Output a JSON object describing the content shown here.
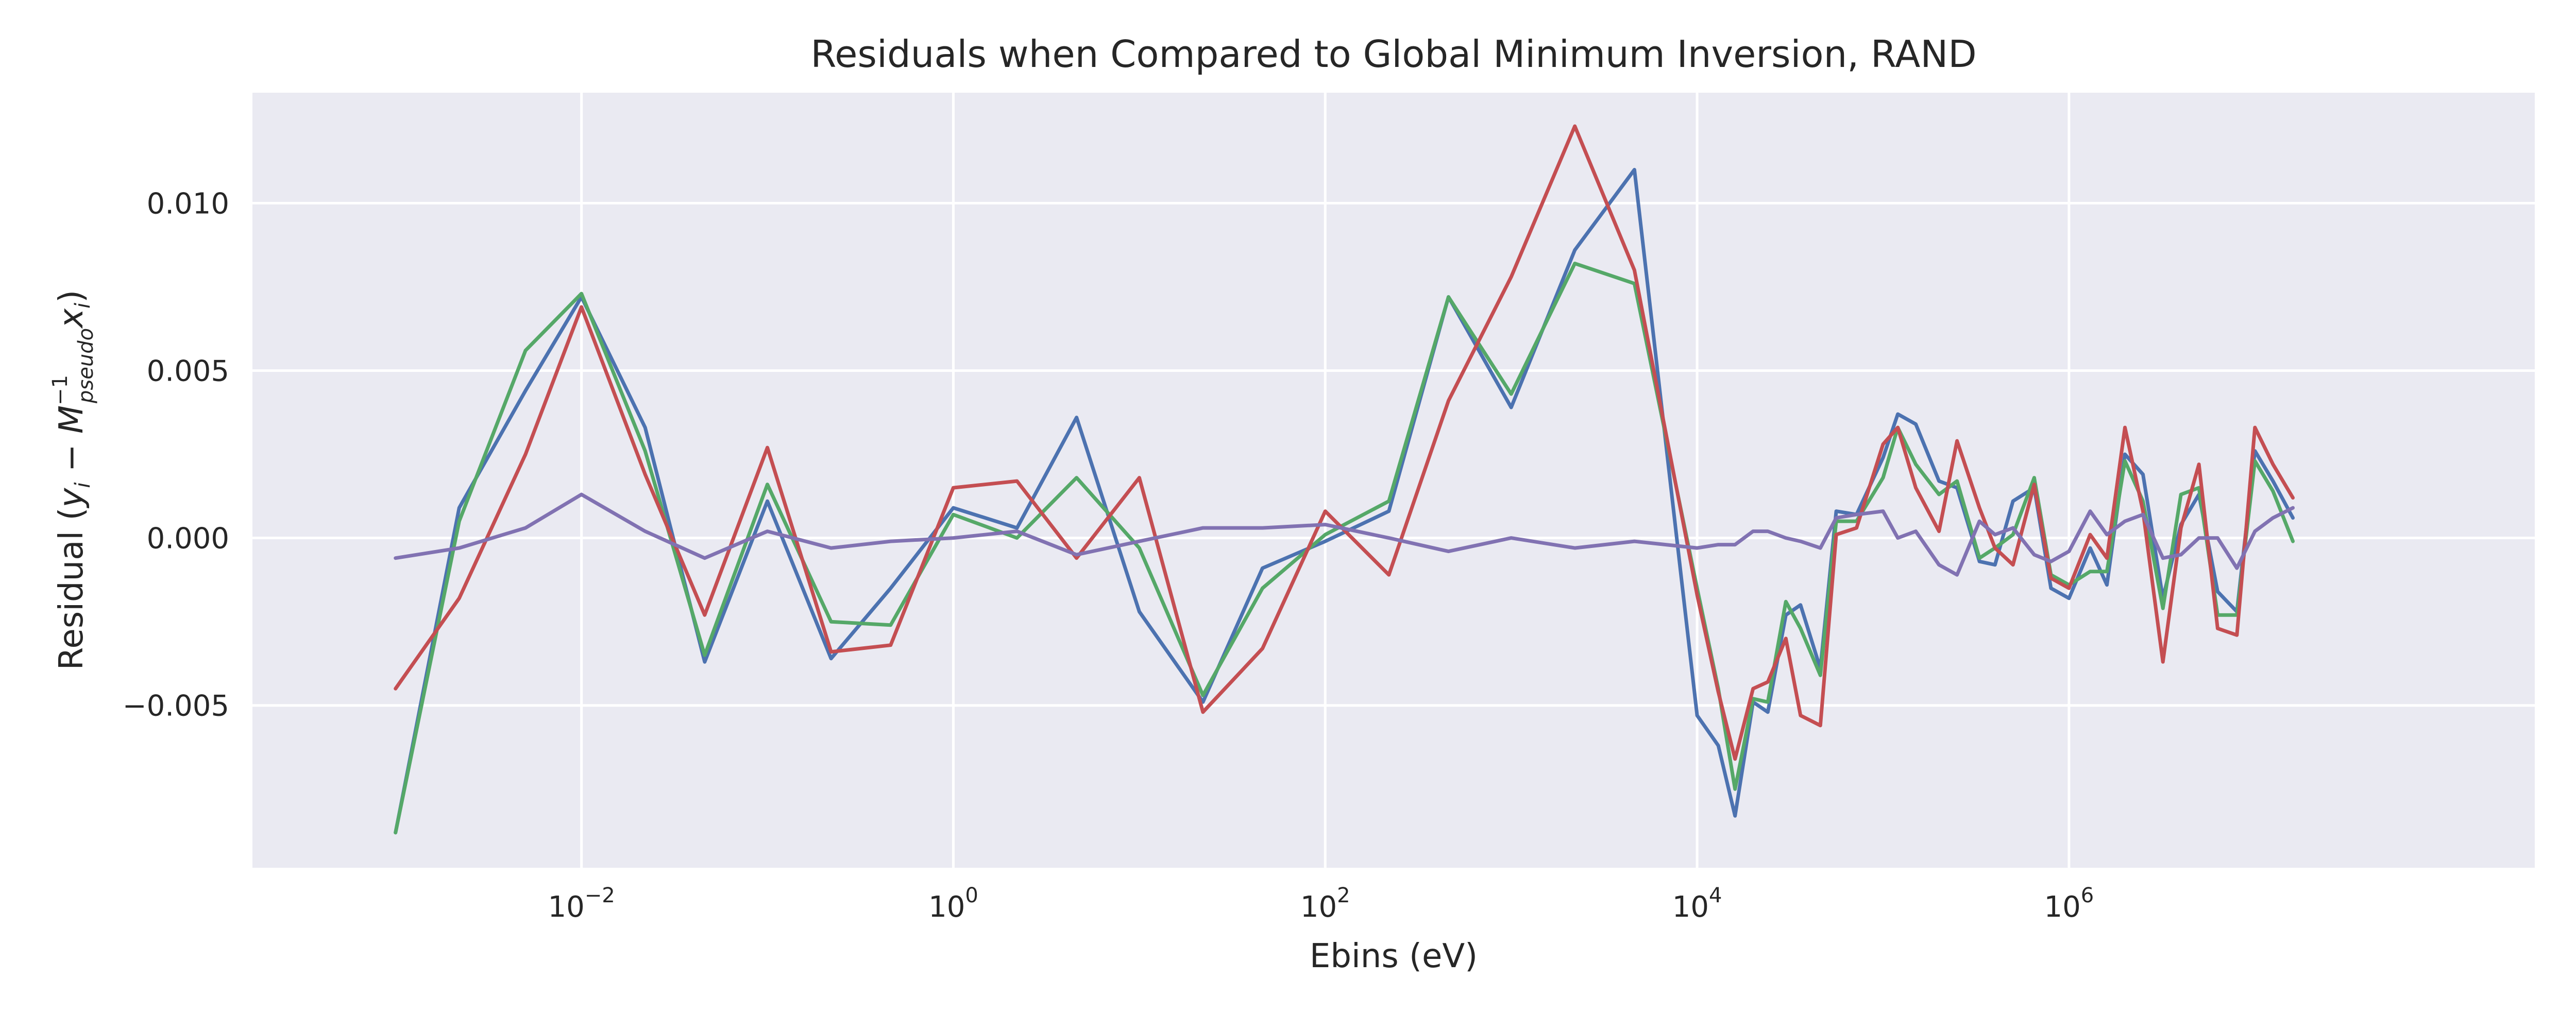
{
  "chart_data": {
    "type": "line",
    "title": "Residuals when Compared to Global Minimum Inversion, RAND",
    "xlabel": "Ebins (eV)",
    "ylabel_parts": {
      "prefix": "Residual (",
      "y": "y",
      "y_sub": "i",
      "minus": " − ",
      "M": "M",
      "M_sup": "−1",
      "M_sub": "pseudo",
      "x": "x",
      "x_sub": "i",
      "suffix": ")"
    },
    "x_scale": "log",
    "xlim": [
      0.00017,
      320000000
    ],
    "ylim": [
      -0.00985,
      0.0133
    ],
    "grid": true,
    "x_ticks": [
      {
        "value": 0.01,
        "base": "10",
        "exp": "−2"
      },
      {
        "value": 1,
        "base": "10",
        "exp": "0"
      },
      {
        "value": 100,
        "base": "10",
        "exp": "2"
      },
      {
        "value": 10000,
        "base": "10",
        "exp": "4"
      },
      {
        "value": 1000000,
        "base": "10",
        "exp": "6"
      }
    ],
    "y_ticks": [
      {
        "value": 0.01,
        "label": "0.010"
      },
      {
        "value": 0.005,
        "label": "0.005"
      },
      {
        "value": 0.0,
        "label": "0.000"
      },
      {
        "value": -0.005,
        "label": "−0.005"
      }
    ],
    "series": [
      {
        "color": "#4c72b0",
        "points": [
          [
            0.001,
            -0.0088
          ],
          [
            0.0022,
            0.0009
          ],
          [
            0.005,
            0.0044
          ],
          [
            0.01,
            0.0072
          ],
          [
            0.022,
            0.0033
          ],
          [
            0.046,
            -0.0037
          ],
          [
            0.1,
            0.0011
          ],
          [
            0.22,
            -0.0036
          ],
          [
            0.46,
            -0.0015
          ],
          [
            1,
            0.0009
          ],
          [
            2.2,
            0.0003
          ],
          [
            4.6,
            0.0036
          ],
          [
            10,
            -0.0022
          ],
          [
            22,
            -0.0049
          ],
          [
            46,
            -0.0009
          ],
          [
            100,
            -0.0001
          ],
          [
            220,
            0.0008
          ],
          [
            460,
            0.0072
          ],
          [
            1000,
            0.0039
          ],
          [
            2200,
            0.0086
          ],
          [
            4600,
            0.011
          ],
          [
            10000,
            -0.0053
          ],
          [
            13000,
            -0.0062
          ],
          [
            16000,
            -0.0083
          ],
          [
            20000,
            -0.0049
          ],
          [
            24000,
            -0.0052
          ],
          [
            30000,
            -0.0023
          ],
          [
            36000,
            -0.002
          ],
          [
            46000,
            -0.0039
          ],
          [
            56000,
            0.0008
          ],
          [
            72000,
            0.0007
          ],
          [
            100000,
            0.0024
          ],
          [
            120000,
            0.0037
          ],
          [
            150000,
            0.0034
          ],
          [
            200000,
            0.0017
          ],
          [
            250000,
            0.0015
          ],
          [
            330000,
            -0.0007
          ],
          [
            400000,
            -0.0008
          ],
          [
            500000,
            0.0011
          ],
          [
            650000,
            0.0015
          ],
          [
            800000,
            -0.0015
          ],
          [
            1000000,
            -0.0018
          ],
          [
            1300000,
            -0.0003
          ],
          [
            1600000,
            -0.0014
          ],
          [
            2000000,
            0.0025
          ],
          [
            2500000,
            0.0019
          ],
          [
            3200000,
            -0.0018
          ],
          [
            4000000,
            0.0004
          ],
          [
            5000000,
            0.0013
          ],
          [
            6300000,
            -0.0016
          ],
          [
            8000000,
            -0.0022
          ],
          [
            10000000,
            0.0026
          ],
          [
            12500000,
            0.0017
          ],
          [
            16000000,
            0.0006
          ]
        ]
      },
      {
        "color": "#55a868",
        "points": [
          [
            0.001,
            -0.0088
          ],
          [
            0.0022,
            0.0005
          ],
          [
            0.005,
            0.0056
          ],
          [
            0.01,
            0.0073
          ],
          [
            0.022,
            0.0026
          ],
          [
            0.046,
            -0.0035
          ],
          [
            0.1,
            0.0016
          ],
          [
            0.22,
            -0.0025
          ],
          [
            0.46,
            -0.0026
          ],
          [
            1,
            0.0007
          ],
          [
            2.2,
            0.0
          ],
          [
            4.6,
            0.0018
          ],
          [
            10,
            -0.0003
          ],
          [
            22,
            -0.0047
          ],
          [
            46,
            -0.0015
          ],
          [
            100,
            0.0001
          ],
          [
            220,
            0.0011
          ],
          [
            460,
            0.0072
          ],
          [
            1000,
            0.0043
          ],
          [
            2200,
            0.0082
          ],
          [
            4600,
            0.0076
          ],
          [
            10000,
            -0.0015
          ],
          [
            13000,
            -0.0045
          ],
          [
            16000,
            -0.0075
          ],
          [
            20000,
            -0.0048
          ],
          [
            24000,
            -0.0049
          ],
          [
            30000,
            -0.0019
          ],
          [
            36000,
            -0.0027
          ],
          [
            46000,
            -0.0041
          ],
          [
            56000,
            0.0005
          ],
          [
            72000,
            0.0005
          ],
          [
            100000,
            0.0018
          ],
          [
            120000,
            0.0033
          ],
          [
            150000,
            0.0022
          ],
          [
            200000,
            0.0013
          ],
          [
            250000,
            0.0017
          ],
          [
            330000,
            -0.0006
          ],
          [
            400000,
            -0.0003
          ],
          [
            500000,
            0.0001
          ],
          [
            650000,
            0.0018
          ],
          [
            800000,
            -0.0011
          ],
          [
            1000000,
            -0.0014
          ],
          [
            1300000,
            -0.001
          ],
          [
            1600000,
            -0.001
          ],
          [
            2000000,
            0.0023
          ],
          [
            2500000,
            0.0011
          ],
          [
            3200000,
            -0.0021
          ],
          [
            4000000,
            0.0013
          ],
          [
            5000000,
            0.0015
          ],
          [
            6300000,
            -0.0023
          ],
          [
            8000000,
            -0.0023
          ],
          [
            10000000,
            0.0023
          ],
          [
            12500000,
            0.0014
          ],
          [
            16000000,
            -0.0001
          ]
        ]
      },
      {
        "color": "#c44e52",
        "points": [
          [
            0.001,
            -0.0045
          ],
          [
            0.0022,
            -0.0018
          ],
          [
            0.005,
            0.0025
          ],
          [
            0.01,
            0.0069
          ],
          [
            0.022,
            0.0019
          ],
          [
            0.046,
            -0.0023
          ],
          [
            0.1,
            0.0027
          ],
          [
            0.22,
            -0.0034
          ],
          [
            0.46,
            -0.0032
          ],
          [
            1,
            0.0015
          ],
          [
            2.2,
            0.0017
          ],
          [
            4.6,
            -0.0006
          ],
          [
            10,
            0.0018
          ],
          [
            22,
            -0.0052
          ],
          [
            46,
            -0.0033
          ],
          [
            100,
            0.0008
          ],
          [
            220,
            -0.0011
          ],
          [
            460,
            0.0041
          ],
          [
            1000,
            0.0078
          ],
          [
            2200,
            0.0123
          ],
          [
            4600,
            0.008
          ],
          [
            10000,
            -0.0017
          ],
          [
            13000,
            -0.0046
          ],
          [
            16000,
            -0.0066
          ],
          [
            20000,
            -0.0045
          ],
          [
            24000,
            -0.0043
          ],
          [
            30000,
            -0.003
          ],
          [
            36000,
            -0.0053
          ],
          [
            46000,
            -0.0056
          ],
          [
            56000,
            0.0001
          ],
          [
            72000,
            0.0003
          ],
          [
            100000,
            0.0028
          ],
          [
            120000,
            0.0033
          ],
          [
            150000,
            0.0015
          ],
          [
            200000,
            0.0002
          ],
          [
            250000,
            0.0029
          ],
          [
            330000,
            0.0009
          ],
          [
            400000,
            -0.0003
          ],
          [
            500000,
            -0.0008
          ],
          [
            650000,
            0.0016
          ],
          [
            800000,
            -0.0012
          ],
          [
            1000000,
            -0.0015
          ],
          [
            1300000,
            0.0001
          ],
          [
            1600000,
            -0.0006
          ],
          [
            2000000,
            0.0033
          ],
          [
            2500000,
            0.0008
          ],
          [
            3200000,
            -0.0037
          ],
          [
            4000000,
            0.0003
          ],
          [
            5000000,
            0.0022
          ],
          [
            6300000,
            -0.0027
          ],
          [
            8000000,
            -0.0029
          ],
          [
            10000000,
            0.0033
          ],
          [
            12500000,
            0.0022
          ],
          [
            16000000,
            0.0012
          ]
        ]
      },
      {
        "color": "#8172b2",
        "points": [
          [
            0.001,
            -0.0006
          ],
          [
            0.0022,
            -0.0003
          ],
          [
            0.005,
            0.0003
          ],
          [
            0.01,
            0.0013
          ],
          [
            0.022,
            0.0002
          ],
          [
            0.046,
            -0.0006
          ],
          [
            0.1,
            0.0002
          ],
          [
            0.22,
            -0.0003
          ],
          [
            0.46,
            -0.0001
          ],
          [
            1,
            0.0
          ],
          [
            2.2,
            0.0002
          ],
          [
            4.6,
            -0.0005
          ],
          [
            10,
            -0.0001
          ],
          [
            22,
            0.0003
          ],
          [
            46,
            0.0003
          ],
          [
            100,
            0.0004
          ],
          [
            220,
            0.0
          ],
          [
            460,
            -0.0004
          ],
          [
            1000,
            0.0
          ],
          [
            2200,
            -0.0003
          ],
          [
            4600,
            -0.0001
          ],
          [
            10000,
            -0.0003
          ],
          [
            13000,
            -0.0002
          ],
          [
            16000,
            -0.0002
          ],
          [
            20000,
            0.0002
          ],
          [
            24000,
            0.0002
          ],
          [
            30000,
            0.0
          ],
          [
            36000,
            -0.0001
          ],
          [
            46000,
            -0.0003
          ],
          [
            56000,
            0.0006
          ],
          [
            72000,
            0.0007
          ],
          [
            100000,
            0.0008
          ],
          [
            120000,
            0.0
          ],
          [
            150000,
            0.0002
          ],
          [
            200000,
            -0.0008
          ],
          [
            250000,
            -0.0011
          ],
          [
            330000,
            0.0005
          ],
          [
            400000,
            0.0001
          ],
          [
            500000,
            0.0003
          ],
          [
            650000,
            -0.0005
          ],
          [
            800000,
            -0.0007
          ],
          [
            1000000,
            -0.0004
          ],
          [
            1300000,
            0.0008
          ],
          [
            1600000,
            0.0001
          ],
          [
            2000000,
            0.0005
          ],
          [
            2500000,
            0.0007
          ],
          [
            3200000,
            -0.0006
          ],
          [
            4000000,
            -0.0005
          ],
          [
            5000000,
            0.0
          ],
          [
            6300000,
            0.0
          ],
          [
            8000000,
            -0.0009
          ],
          [
            10000000,
            0.0002
          ],
          [
            12500000,
            0.0006
          ],
          [
            16000000,
            0.0009
          ]
        ]
      }
    ]
  }
}
